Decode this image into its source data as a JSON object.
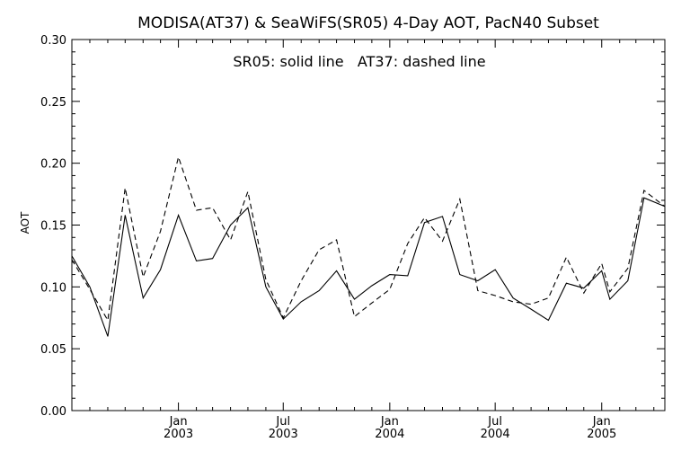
{
  "chart_data": {
    "type": "line",
    "title": "MODISA(AT37) & SeaWiFS(SR05) 4-Day AOT, PacN40 Subset",
    "annotation": "SR05: solid line   AT37: dashed line",
    "xlabel": "",
    "ylabel": "AOT",
    "ylim": [
      0.0,
      0.3
    ],
    "yticks": [
      "0.00",
      "0.05",
      "0.10",
      "0.15",
      "0.20",
      "0.25",
      "0.30"
    ],
    "xlim": [
      "2002-07-01",
      "2005-04-20"
    ],
    "xticks": [
      {
        "date": "2003-01-01",
        "line1": "Jan",
        "line2": "2003"
      },
      {
        "date": "2003-07-01",
        "line1": "Jul",
        "line2": "2003"
      },
      {
        "date": "2004-01-01",
        "line1": "Jan",
        "line2": "2004"
      },
      {
        "date": "2004-07-01",
        "line1": "Jul",
        "line2": "2004"
      },
      {
        "date": "2005-01-01",
        "line1": "Jan",
        "line2": "2005"
      }
    ],
    "minor_xticks": [
      "2002-08-01",
      "2002-09-01",
      "2002-10-01",
      "2002-11-01",
      "2002-12-01",
      "2003-02-01",
      "2003-03-01",
      "2003-04-01",
      "2003-05-01",
      "2003-06-01",
      "2003-08-01",
      "2003-09-01",
      "2003-10-01",
      "2003-11-01",
      "2003-12-01",
      "2004-02-01",
      "2004-03-01",
      "2004-04-01",
      "2004-05-01",
      "2004-06-01",
      "2004-08-01",
      "2004-09-01",
      "2004-10-01",
      "2004-11-01",
      "2004-12-01",
      "2005-02-01",
      "2005-03-01",
      "2005-04-01"
    ],
    "minor_yticks": [
      0.01,
      0.02,
      0.03,
      0.04,
      0.06,
      0.07,
      0.08,
      0.09,
      0.11,
      0.12,
      0.13,
      0.14,
      0.16,
      0.17,
      0.18,
      0.19,
      0.21,
      0.22,
      0.23,
      0.24,
      0.26,
      0.27,
      0.28,
      0.29
    ],
    "series": [
      {
        "name": "SR05",
        "style": "solid",
        "color": "#000000",
        "points": [
          [
            "2002-07-01",
            0.125
          ],
          [
            "2002-08-01",
            0.1
          ],
          [
            "2002-09-01",
            0.06
          ],
          [
            "2002-10-01",
            0.158
          ],
          [
            "2002-11-01",
            0.091
          ],
          [
            "2002-12-01",
            0.114
          ],
          [
            "2003-01-01",
            0.158
          ],
          [
            "2003-02-01",
            0.121
          ],
          [
            "2003-03-01",
            0.123
          ],
          [
            "2003-04-01",
            0.15
          ],
          [
            "2003-05-01",
            0.164
          ],
          [
            "2003-06-01",
            0.1
          ],
          [
            "2003-07-01",
            0.074
          ],
          [
            "2003-08-01",
            0.088
          ],
          [
            "2003-09-01",
            0.097
          ],
          [
            "2003-10-01",
            0.113
          ],
          [
            "2003-11-01",
            0.09
          ],
          [
            "2003-12-01",
            0.101
          ],
          [
            "2004-01-01",
            0.11
          ],
          [
            "2004-02-01",
            0.109
          ],
          [
            "2004-03-01",
            0.152
          ],
          [
            "2004-04-01",
            0.157
          ],
          [
            "2004-05-01",
            0.11
          ],
          [
            "2004-06-01",
            0.105
          ],
          [
            "2004-07-01",
            0.114
          ],
          [
            "2004-08-01",
            0.091
          ],
          [
            "2004-09-01",
            0.082
          ],
          [
            "2004-10-01",
            0.073
          ],
          [
            "2004-11-01",
            0.103
          ],
          [
            "2004-12-01",
            0.099
          ],
          [
            "2005-01-01",
            0.113
          ],
          [
            "2005-01-15",
            0.09
          ],
          [
            "2005-02-15",
            0.105
          ],
          [
            "2005-03-15",
            0.172
          ],
          [
            "2005-04-20",
            0.165
          ]
        ]
      },
      {
        "name": "AT37",
        "style": "dashed",
        "color": "#000000",
        "points": [
          [
            "2002-07-01",
            0.122
          ],
          [
            "2002-08-01",
            0.098
          ],
          [
            "2002-09-01",
            0.073
          ],
          [
            "2002-10-01",
            0.18
          ],
          [
            "2002-11-01",
            0.108
          ],
          [
            "2002-12-01",
            0.145
          ],
          [
            "2003-01-01",
            0.205
          ],
          [
            "2003-02-01",
            0.162
          ],
          [
            "2003-03-01",
            0.164
          ],
          [
            "2003-04-01",
            0.138
          ],
          [
            "2003-05-01",
            0.177
          ],
          [
            "2003-06-01",
            0.106
          ],
          [
            "2003-07-01",
            0.075
          ],
          [
            "2003-08-01",
            0.105
          ],
          [
            "2003-09-01",
            0.13
          ],
          [
            "2003-10-01",
            0.138
          ],
          [
            "2003-11-01",
            0.076
          ],
          [
            "2003-12-01",
            0.087
          ],
          [
            "2004-01-01",
            0.098
          ],
          [
            "2004-02-01",
            0.135
          ],
          [
            "2004-03-01",
            0.156
          ],
          [
            "2004-04-01",
            0.137
          ],
          [
            "2004-05-01",
            0.171
          ],
          [
            "2004-06-01",
            0.097
          ],
          [
            "2004-07-01",
            0.093
          ],
          [
            "2004-08-01",
            0.088
          ],
          [
            "2004-09-01",
            0.086
          ],
          [
            "2004-10-01",
            0.091
          ],
          [
            "2004-11-01",
            0.124
          ],
          [
            "2004-12-01",
            0.095
          ],
          [
            "2005-01-01",
            0.119
          ],
          [
            "2005-01-15",
            0.096
          ],
          [
            "2005-02-15",
            0.115
          ],
          [
            "2005-03-15",
            0.178
          ],
          [
            "2005-04-20",
            0.165
          ]
        ]
      }
    ],
    "grid": false,
    "legend": "none"
  }
}
